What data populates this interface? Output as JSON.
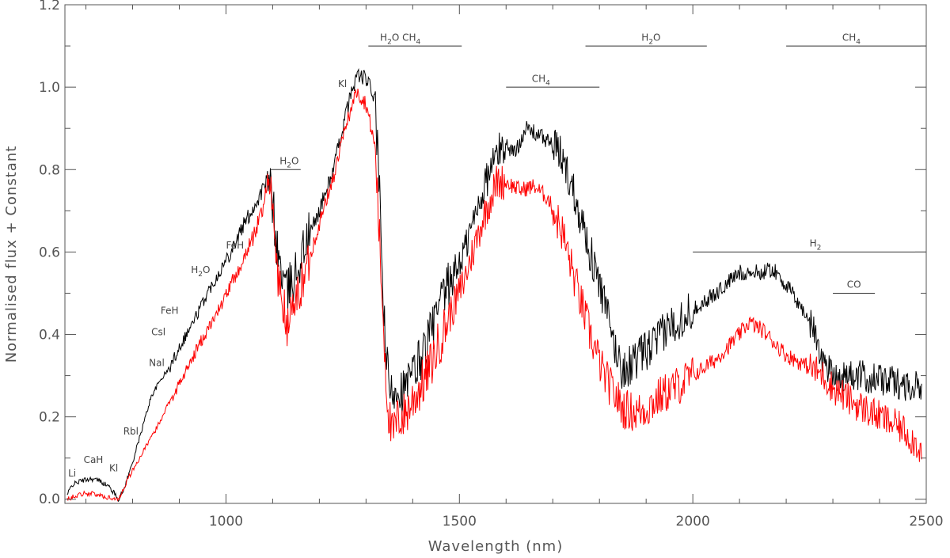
{
  "chart_data": {
    "type": "line",
    "title": "",
    "xlabel": "Wavelength (nm)",
    "ylabel": "Normalised flux + Constant",
    "xlim": [
      655,
      2500
    ],
    "ylim": [
      -0.01,
      1.2
    ],
    "x_ticks": [
      1000,
      1500,
      2000,
      2500
    ],
    "x_tick_labels": [
      "1000",
      "1500",
      "2000",
      "2500"
    ],
    "y_ticks": [
      0.0,
      0.2,
      0.4,
      0.6,
      0.8,
      1.0,
      1.2
    ],
    "y_tick_labels": [
      "0.0",
      "0.2",
      "0.4",
      "0.6",
      "0.8",
      "1.0",
      "1.2"
    ],
    "grid": false,
    "series": [
      {
        "color": "#000000",
        "points": [
          [
            660,
            0.01
          ],
          [
            670,
            0.035
          ],
          [
            690,
            0.045
          ],
          [
            710,
            0.05
          ],
          [
            730,
            0.045
          ],
          [
            750,
            0.03
          ],
          [
            765,
            0.008
          ],
          [
            770,
            0.0
          ],
          [
            780,
            0.02
          ],
          [
            800,
            0.09
          ],
          [
            820,
            0.17
          ],
          [
            840,
            0.25
          ],
          [
            860,
            0.29
          ],
          [
            880,
            0.32
          ],
          [
            900,
            0.37
          ],
          [
            930,
            0.43
          ],
          [
            960,
            0.5
          ],
          [
            1000,
            0.58
          ],
          [
            1040,
            0.67
          ],
          [
            1070,
            0.73
          ],
          [
            1090,
            0.78
          ],
          [
            1100,
            0.72
          ],
          [
            1110,
            0.6
          ],
          [
            1130,
            0.5
          ],
          [
            1150,
            0.55
          ],
          [
            1170,
            0.62
          ],
          [
            1200,
            0.7
          ],
          [
            1230,
            0.8
          ],
          [
            1260,
            0.95
          ],
          [
            1280,
            1.03
          ],
          [
            1300,
            1.02
          ],
          [
            1320,
            0.97
          ],
          [
            1330,
            0.7
          ],
          [
            1340,
            0.4
          ],
          [
            1350,
            0.25
          ],
          [
            1365,
            0.28
          ],
          [
            1380,
            0.26
          ],
          [
            1400,
            0.3
          ],
          [
            1430,
            0.38
          ],
          [
            1470,
            0.5
          ],
          [
            1510,
            0.6
          ],
          [
            1550,
            0.75
          ],
          [
            1580,
            0.84
          ],
          [
            1600,
            0.86
          ],
          [
            1620,
            0.84
          ],
          [
            1640,
            0.9
          ],
          [
            1660,
            0.89
          ],
          [
            1690,
            0.87
          ],
          [
            1720,
            0.83
          ],
          [
            1750,
            0.73
          ],
          [
            1780,
            0.6
          ],
          [
            1810,
            0.48
          ],
          [
            1830,
            0.38
          ],
          [
            1850,
            0.31
          ],
          [
            1880,
            0.34
          ],
          [
            1900,
            0.36
          ],
          [
            1920,
            0.38
          ],
          [
            1950,
            0.42
          ],
          [
            2000,
            0.46
          ],
          [
            2050,
            0.5
          ],
          [
            2100,
            0.55
          ],
          [
            2150,
            0.55
          ],
          [
            2170,
            0.56
          ],
          [
            2200,
            0.52
          ],
          [
            2230,
            0.47
          ],
          [
            2260,
            0.41
          ],
          [
            2280,
            0.33
          ],
          [
            2310,
            0.3
          ],
          [
            2350,
            0.3
          ],
          [
            2400,
            0.29
          ],
          [
            2450,
            0.28
          ],
          [
            2490,
            0.27
          ]
        ]
      },
      {
        "color": "#ff0000",
        "points": [
          [
            660,
            0.0
          ],
          [
            680,
            0.01
          ],
          [
            700,
            0.015
          ],
          [
            720,
            0.012
          ],
          [
            740,
            0.006
          ],
          [
            770,
            0.0
          ],
          [
            790,
            0.05
          ],
          [
            820,
            0.11
          ],
          [
            850,
            0.17
          ],
          [
            880,
            0.24
          ],
          [
            910,
            0.3
          ],
          [
            940,
            0.37
          ],
          [
            980,
            0.45
          ],
          [
            1020,
            0.54
          ],
          [
            1060,
            0.64
          ],
          [
            1080,
            0.71
          ],
          [
            1090,
            0.79
          ],
          [
            1100,
            0.7
          ],
          [
            1110,
            0.55
          ],
          [
            1130,
            0.42
          ],
          [
            1150,
            0.48
          ],
          [
            1170,
            0.55
          ],
          [
            1200,
            0.67
          ],
          [
            1230,
            0.78
          ],
          [
            1260,
            0.92
          ],
          [
            1280,
            0.99
          ],
          [
            1300,
            0.96
          ],
          [
            1320,
            0.85
          ],
          [
            1330,
            0.6
          ],
          [
            1345,
            0.25
          ],
          [
            1355,
            0.15
          ],
          [
            1370,
            0.2
          ],
          [
            1380,
            0.2
          ],
          [
            1400,
            0.24
          ],
          [
            1430,
            0.3
          ],
          [
            1470,
            0.42
          ],
          [
            1510,
            0.53
          ],
          [
            1550,
            0.68
          ],
          [
            1580,
            0.77
          ],
          [
            1600,
            0.77
          ],
          [
            1630,
            0.75
          ],
          [
            1660,
            0.76
          ],
          [
            1690,
            0.73
          ],
          [
            1720,
            0.65
          ],
          [
            1750,
            0.52
          ],
          [
            1780,
            0.4
          ],
          [
            1810,
            0.3
          ],
          [
            1850,
            0.22
          ],
          [
            1880,
            0.21
          ],
          [
            1900,
            0.22
          ],
          [
            1930,
            0.25
          ],
          [
            1960,
            0.27
          ],
          [
            2000,
            0.3
          ],
          [
            2050,
            0.34
          ],
          [
            2100,
            0.4
          ],
          [
            2120,
            0.43
          ],
          [
            2150,
            0.41
          ],
          [
            2200,
            0.35
          ],
          [
            2250,
            0.32
          ],
          [
            2280,
            0.3
          ],
          [
            2300,
            0.27
          ],
          [
            2350,
            0.23
          ],
          [
            2400,
            0.2
          ],
          [
            2450,
            0.17
          ],
          [
            2490,
            0.12
          ]
        ]
      }
    ],
    "annotations": {
      "lines": [
        {
          "label_main": "H",
          "label_sub": "2",
          "label_after": "O CH",
          "label_sub2": "4",
          "x1": 1305,
          "x2": 1505,
          "y": 1.1,
          "lx": 1330,
          "ly": 1.113
        },
        {
          "label_main": "H",
          "label_sub": "2",
          "label_after": "O",
          "label_sub2": "",
          "x1": 1770,
          "x2": 2030,
          "y": 1.1,
          "lx": 1890,
          "ly": 1.113
        },
        {
          "label_main": "CH",
          "label_sub": "4",
          "label_after": "",
          "label_sub2": "",
          "x1": 2200,
          "x2": 2500,
          "y": 1.1,
          "lx": 2320,
          "ly": 1.113
        },
        {
          "label_main": "CH",
          "label_sub": "4",
          "label_after": "",
          "label_sub2": "",
          "x1": 1600,
          "x2": 1800,
          "y": 1.0,
          "lx": 1655,
          "ly": 1.013
        },
        {
          "label_main": "H",
          "label_sub": "2",
          "label_after": "O",
          "label_sub2": "",
          "x1": 1095,
          "x2": 1160,
          "y": 0.8,
          "lx": 1115,
          "ly": 0.813
        },
        {
          "label_main": "H",
          "label_sub": "2",
          "label_after": "",
          "label_sub2": "",
          "x1": 2000,
          "x2": 2500,
          "y": 0.6,
          "lx": 2250,
          "ly": 0.613
        },
        {
          "label_main": "CO",
          "label_sub": "",
          "label_after": "",
          "label_sub2": "",
          "x1": 2300,
          "x2": 2390,
          "y": 0.5,
          "lx": 2330,
          "ly": 0.513
        }
      ],
      "labels": [
        {
          "text": "Kl",
          "x": 1240,
          "y": 1.0
        },
        {
          "text": "FeH",
          "x": 1000,
          "y": 0.608
        },
        {
          "text": "H",
          "sub": "2",
          "after": "O",
          "x": 925,
          "y": 0.549
        },
        {
          "text": "FeH",
          "x": 860,
          "y": 0.45
        },
        {
          "text": "Csl",
          "x": 840,
          "y": 0.398
        },
        {
          "text": "Nal",
          "x": 835,
          "y": 0.323
        },
        {
          "text": "Rbl",
          "x": 780,
          "y": 0.157
        },
        {
          "text": "Kl",
          "x": 750,
          "y": 0.068
        },
        {
          "text": "CaH",
          "x": 695,
          "y": 0.088
        },
        {
          "text": "Li",
          "x": 662,
          "y": 0.055
        }
      ]
    }
  }
}
